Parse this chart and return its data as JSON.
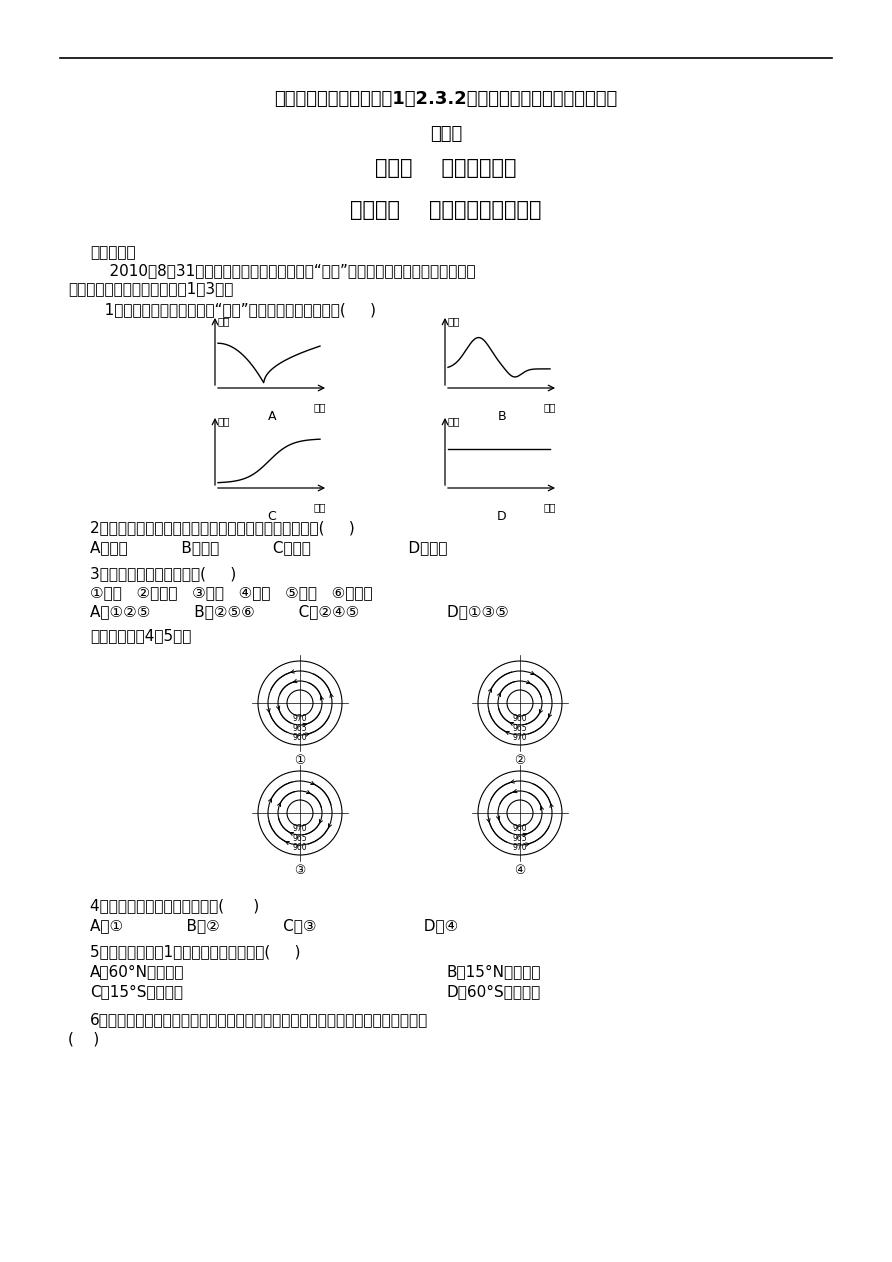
{
  "bg_color": "#ffffff",
  "title1": "人教版高一地理上册必修1《2.3.2气旋、反气旋与天气》同步练习",
  "title2": "及答案",
  "title3": "第三节    常见天气系统",
  "title4": "第２课时    气旋、反气旋与天气",
  "section1": "一、选择题",
  "para1_line1": "    2010年8月31日发布台风橙色预警，受台风“圆规”影响，我国东南沿海将迎来今年",
  "para1_line2": "最大范围的台风雨。据此回答1～3题。",
  "q1": "   1．下列四幅图中，能表示“圆规”台风过境气压变化的是(     )",
  "q2_text": "2．当台风中心移至上海市正北方向时，上海市的风向为(     )",
  "q2_opts": "A．东北           B．西北           C．东南                    D．西南",
  "q3_text": "3．台风带来的灾害主要有(     )",
  "q3_sub": "①海啊   ②风暴潮   ③地震   ④狂风   ⑤暴雨   ⑥沙尘暴",
  "q3_opts": "A．①②⑤         B．②⑤⑥         C．②④⑤                  D．①③⑤",
  "q45_intro": "读下图，回答4～5题。",
  "q4_text": "4．正确表示某气压系统的图是(      )",
  "q4_opts": "A．①             B．②             C．③                      D．④",
  "q5_text": "5．该气压系统在1月份可能出现的地点为(     )",
  "q5_optA": "A．60°N附近海域",
  "q5_optB": "B．15°N附近海域",
  "q5_optC": "C．15°S附近海域",
  "q5_optD": "D．60°S附近海域",
  "q6_line1": "6．下图为某区域附近区域四个地点的风向观测图，据此可判断该区域的天气系统是",
  "q6_line2": "(    )"
}
